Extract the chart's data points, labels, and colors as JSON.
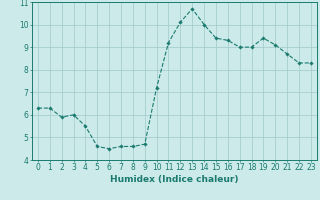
{
  "x": [
    0,
    1,
    2,
    3,
    4,
    5,
    6,
    7,
    8,
    9,
    10,
    11,
    12,
    13,
    14,
    15,
    16,
    17,
    18,
    19,
    20,
    21,
    22,
    23
  ],
  "y": [
    6.3,
    6.3,
    5.9,
    6.0,
    5.5,
    4.6,
    4.5,
    4.6,
    4.6,
    4.7,
    7.2,
    9.2,
    10.1,
    10.7,
    10.0,
    9.4,
    9.3,
    9.0,
    9.0,
    9.4,
    9.1,
    8.7,
    8.3,
    8.3
  ],
  "line_color": "#1a7a6e",
  "marker": "D",
  "marker_size": 1.8,
  "bg_color": "#cceaea",
  "grid_color": "#a0c8c8",
  "xlabel": "Humidex (Indice chaleur)",
  "ylim": [
    4,
    11
  ],
  "xlim": [
    -0.5,
    23.5
  ],
  "yticks": [
    4,
    5,
    6,
    7,
    8,
    9,
    10,
    11
  ],
  "xtick_labels": [
    "0",
    "1",
    "2",
    "3",
    "4",
    "5",
    "6",
    "7",
    "8",
    "9",
    "10",
    "11",
    "12",
    "13",
    "14",
    "15",
    "16",
    "17",
    "18",
    "19",
    "20",
    "21",
    "22",
    "23"
  ],
  "tick_color": "#1a7a6e",
  "label_fontsize": 6.5,
  "tick_fontsize": 5.5
}
